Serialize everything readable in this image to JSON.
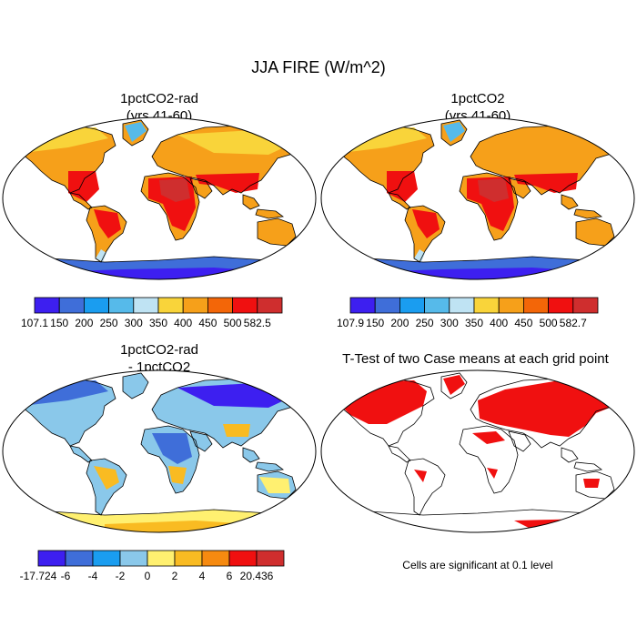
{
  "title": "JJA FIRE (W/m^2)",
  "panels": [
    {
      "title_line1": "1pctCO2-rad",
      "title_line2": "(yrs 41-60)"
    },
    {
      "title_line1": "1pctCO2",
      "title_line2": "(yrs 41-60)"
    },
    {
      "title_line1": "1pctCO2-rad",
      "title_line2": "- 1pctCO2"
    },
    {
      "title_line1": "T-Test of two Case means at each grid point",
      "title_line2": ""
    }
  ],
  "colorbars": [
    {
      "labels": [
        "107.1",
        "150",
        "200",
        "250",
        "300",
        "350",
        "400",
        "450",
        "500",
        "582.5"
      ],
      "colors": [
        "#3d1ff0",
        "#3f6ed9",
        "#1a9df0",
        "#56baea",
        "#bfe3f3",
        "#f9d43a",
        "#f6a01a",
        "#f36608",
        "#f01010",
        "#cf2e2e"
      ]
    },
    {
      "labels": [
        "107.9",
        "150",
        "200",
        "250",
        "300",
        "350",
        "400",
        "450",
        "500",
        "582.7"
      ],
      "colors": [
        "#3d1ff0",
        "#3f6ed9",
        "#1a9df0",
        "#56baea",
        "#bfe3f3",
        "#f9d43a",
        "#f6a01a",
        "#f36608",
        "#f01010",
        "#cf2e2e"
      ]
    },
    {
      "labels": [
        "-17.724",
        "-6",
        "-4",
        "-2",
        "0",
        "2",
        "4",
        "6",
        "20.436"
      ],
      "colors": [
        "#3d1ff0",
        "#3f6ed9",
        "#1a9df0",
        "#8ac8ea",
        "#fff070",
        "#f9bb22",
        "#f68a10",
        "#f01010",
        "#cf2e2e"
      ]
    }
  ],
  "significance_note": "Cells are significant at 0.1 level"
}
